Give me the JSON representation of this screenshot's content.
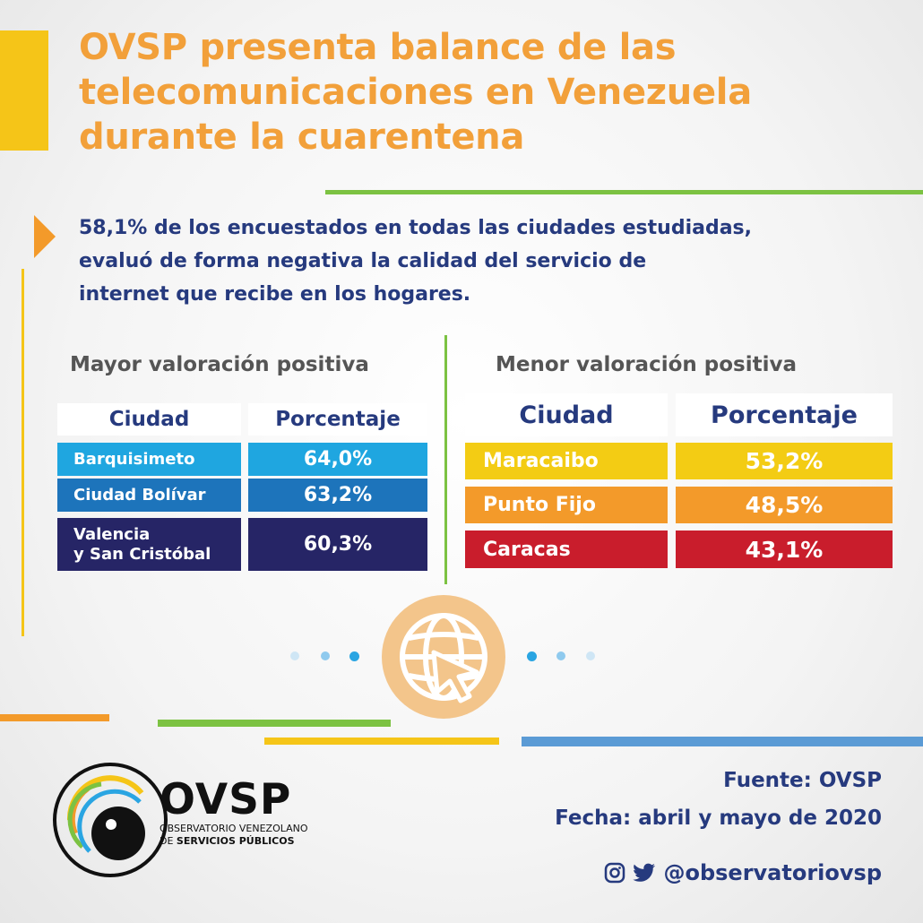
{
  "title": {
    "line1": "OVSP presenta balance de las",
    "line2": "telecomunicaciones en Venezuela",
    "line3": "durante la cuarentena"
  },
  "highlight": {
    "line1": "58,1% de los encuestados en todas las ciudades estudiadas,",
    "line2": "evaluó de forma negativa la calidad del servicio de",
    "line3": "internet que recibe en los hogares."
  },
  "left_table": {
    "title": "Mayor valoración positiva",
    "headers": [
      "Ciudad",
      "Porcentaje"
    ],
    "rows": [
      {
        "city_line1": "Barquisimeto",
        "city_line2": "",
        "pct": "64,0%",
        "color": "#1fa6e0"
      },
      {
        "city_line1": "Ciudad Bolívar",
        "city_line2": "",
        "pct": "63,2%",
        "color": "#1d74bb"
      },
      {
        "city_line1": "Valencia",
        "city_line2": "y San Cristóbal",
        "pct": "60,3%",
        "color": "#262566"
      }
    ]
  },
  "right_table": {
    "title": "Menor valoración positiva",
    "headers": [
      "Ciudad",
      "Porcentaje"
    ],
    "rows": [
      {
        "city": "Maracaibo",
        "pct": "53,2%",
        "color": "#f3cc14"
      },
      {
        "city": "Punto Fijo",
        "pct": "48,5%",
        "color": "#f39a2a"
      },
      {
        "city": "Caracas",
        "pct": "43,1%",
        "color": "#c91d2c"
      }
    ]
  },
  "source": {
    "fuente": "Fuente: OVSP",
    "fecha": "Fecha: abril y mayo de 2020"
  },
  "social": {
    "icons": [
      "instagram-icon",
      "twitter-icon"
    ],
    "handle": "@observatoriovsp"
  },
  "logo": {
    "name": "OVSP",
    "sub_line1": "OBSERVATORIO VENEZOLANO",
    "sub_line2_prefix": "DE ",
    "sub_line2_bold": "SERVICIOS PÚBLICOS"
  },
  "colors": {
    "title_orange": "#f2a03a",
    "navy": "#263a7e",
    "green": "#7cc242",
    "yellow": "#f5c518",
    "blue_line": "#5b9bd5",
    "globe": "#f3c58b"
  }
}
